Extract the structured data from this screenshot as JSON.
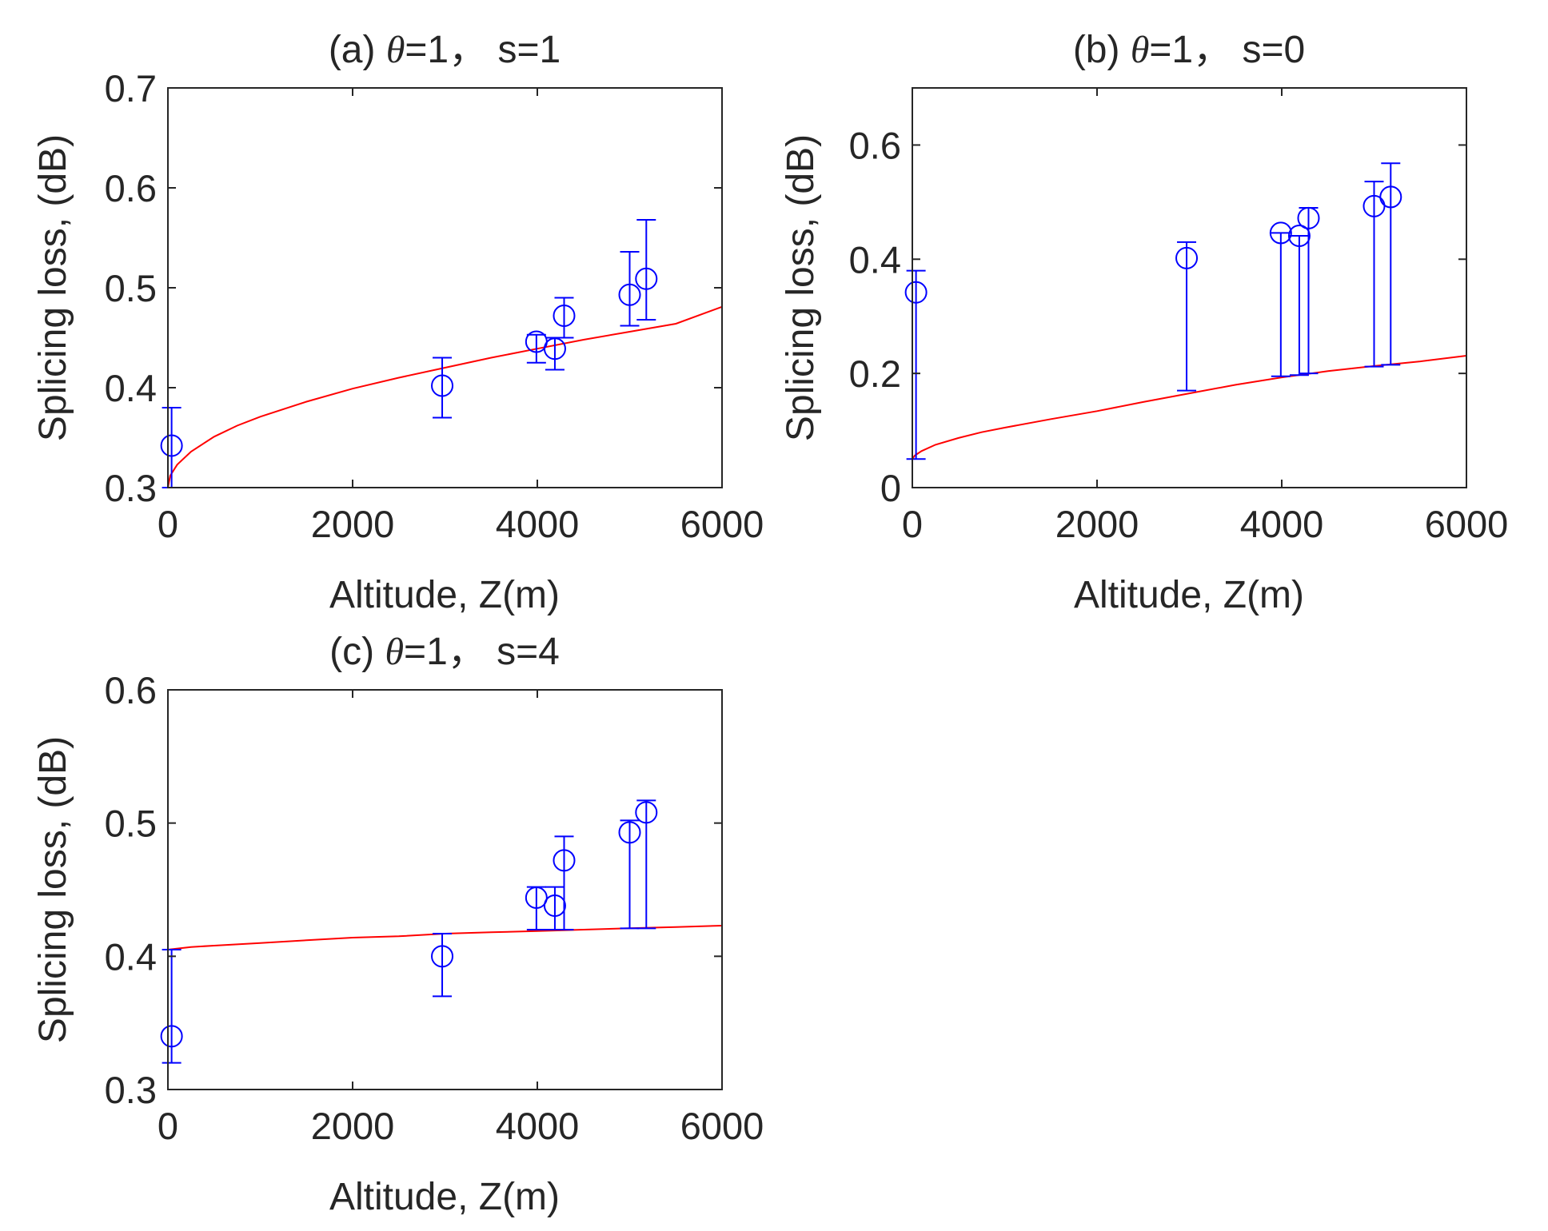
{
  "colors": {
    "axis": "#262626",
    "marker": "#0000ff",
    "fit": "#ff0000",
    "background": "#ffffff"
  },
  "chart_data": [
    {
      "type": "scatter",
      "panel": "a",
      "title_prefix": "(a) ",
      "title_symbol": "θ",
      "title_suffix": "=1， s=1",
      "xlabel": "Altitude, Z(m)",
      "ylabel": "Splicing loss, (dB)",
      "xlim": [
        0,
        6000
      ],
      "ylim": [
        0.3,
        0.7
      ],
      "xticks": [
        0,
        2000,
        4000,
        6000
      ],
      "xtick_labels": [
        "0",
        "2000",
        "4000",
        "6000"
      ],
      "yticks": [
        0.3,
        0.4,
        0.5,
        0.6,
        0.7
      ],
      "ytick_labels": [
        "0.3",
        "0.4",
        "0.5",
        "0.6",
        "0.7"
      ],
      "grid": false,
      "points": [
        {
          "x": 40,
          "y": 0.342,
          "lo": 0.3,
          "hi": 0.38
        },
        {
          "x": 2970,
          "y": 0.402,
          "lo": 0.37,
          "hi": 0.43
        },
        {
          "x": 3990,
          "y": 0.446,
          "lo": 0.425,
          "hi": 0.453
        },
        {
          "x": 4190,
          "y": 0.439,
          "lo": 0.418,
          "hi": 0.45
        },
        {
          "x": 4290,
          "y": 0.472,
          "lo": 0.45,
          "hi": 0.49
        },
        {
          "x": 5000,
          "y": 0.493,
          "lo": 0.462,
          "hi": 0.536
        },
        {
          "x": 5180,
          "y": 0.509,
          "lo": 0.468,
          "hi": 0.568
        }
      ],
      "fit_curve": {
        "x": [
          0,
          25,
          100,
          250,
          500,
          750,
          1000,
          1500,
          2000,
          2500,
          3000,
          3500,
          4000,
          4500,
          5000,
          5500,
          6000
        ],
        "y": [
          0.3,
          0.312,
          0.323,
          0.336,
          0.351,
          0.362,
          0.371,
          0.386,
          0.399,
          0.41,
          0.42,
          0.43,
          0.439,
          0.448,
          0.456,
          0.464,
          0.481
        ]
      }
    },
    {
      "type": "scatter",
      "panel": "b",
      "title_prefix": "(b) ",
      "title_symbol": "θ",
      "title_suffix": "=1， s=0",
      "xlabel": "Altitude, Z(m)",
      "ylabel": "Splicing loss, (dB)",
      "xlim": [
        0,
        6000
      ],
      "ylim": [
        0,
        0.7
      ],
      "xticks": [
        0,
        2000,
        4000,
        6000
      ],
      "xtick_labels": [
        "0",
        "2000",
        "4000",
        "6000"
      ],
      "yticks": [
        0,
        0.2,
        0.4,
        0.6
      ],
      "ytick_labels": [
        "0",
        "0.2",
        "0.4",
        "0.6"
      ],
      "grid": false,
      "points": [
        {
          "x": 40,
          "y": 0.342,
          "lo": 0.05,
          "hi": 0.38
        },
        {
          "x": 2970,
          "y": 0.402,
          "lo": 0.17,
          "hi": 0.43
        },
        {
          "x": 3990,
          "y": 0.446,
          "lo": 0.195,
          "hi": 0.446
        },
        {
          "x": 4190,
          "y": 0.441,
          "lo": 0.197,
          "hi": 0.441
        },
        {
          "x": 4290,
          "y": 0.472,
          "lo": 0.2,
          "hi": 0.49
        },
        {
          "x": 5000,
          "y": 0.493,
          "lo": 0.212,
          "hi": 0.536
        },
        {
          "x": 5180,
          "y": 0.509,
          "lo": 0.215,
          "hi": 0.568
        }
      ],
      "fit_curve": {
        "x": [
          0,
          25,
          100,
          250,
          500,
          750,
          1000,
          1500,
          2000,
          2500,
          3000,
          3500,
          4000,
          4500,
          5000,
          5500,
          6000
        ],
        "y": [
          0.05,
          0.056,
          0.064,
          0.075,
          0.087,
          0.097,
          0.105,
          0.12,
          0.134,
          0.15,
          0.165,
          0.18,
          0.193,
          0.204,
          0.213,
          0.221,
          0.231
        ]
      }
    },
    {
      "type": "scatter",
      "panel": "c",
      "title_prefix": "(c) ",
      "title_symbol": "θ",
      "title_suffix": "=1， s=4",
      "xlabel": "Altitude, Z(m)",
      "ylabel": "Splicing loss, (dB)",
      "xlim": [
        0,
        6000
      ],
      "ylim": [
        0.3,
        0.6
      ],
      "xticks": [
        0,
        2000,
        4000,
        6000
      ],
      "xtick_labels": [
        "0",
        "2000",
        "4000",
        "6000"
      ],
      "yticks": [
        0.3,
        0.4,
        0.5,
        0.6
      ],
      "ytick_labels": [
        "0.3",
        "0.4",
        "0.5",
        "0.6"
      ],
      "grid": false,
      "points": [
        {
          "x": 40,
          "y": 0.34,
          "lo": 0.32,
          "hi": 0.405
        },
        {
          "x": 2970,
          "y": 0.4,
          "lo": 0.37,
          "hi": 0.417
        },
        {
          "x": 3990,
          "y": 0.444,
          "lo": 0.42,
          "hi": 0.452
        },
        {
          "x": 4190,
          "y": 0.438,
          "lo": 0.42,
          "hi": 0.452
        },
        {
          "x": 4290,
          "y": 0.472,
          "lo": 0.42,
          "hi": 0.49
        },
        {
          "x": 5000,
          "y": 0.493,
          "lo": 0.421,
          "hi": 0.502
        },
        {
          "x": 5180,
          "y": 0.508,
          "lo": 0.421,
          "hi": 0.517
        }
      ],
      "fit_curve": {
        "x": [
          0,
          250,
          500,
          1000,
          1500,
          2000,
          2500,
          3000,
          3500,
          4000,
          4500,
          5000,
          5500,
          6000
        ],
        "y": [
          0.405,
          0.407,
          0.408,
          0.41,
          0.412,
          0.414,
          0.415,
          0.417,
          0.418,
          0.419,
          0.42,
          0.421,
          0.422,
          0.423
        ]
      }
    }
  ]
}
